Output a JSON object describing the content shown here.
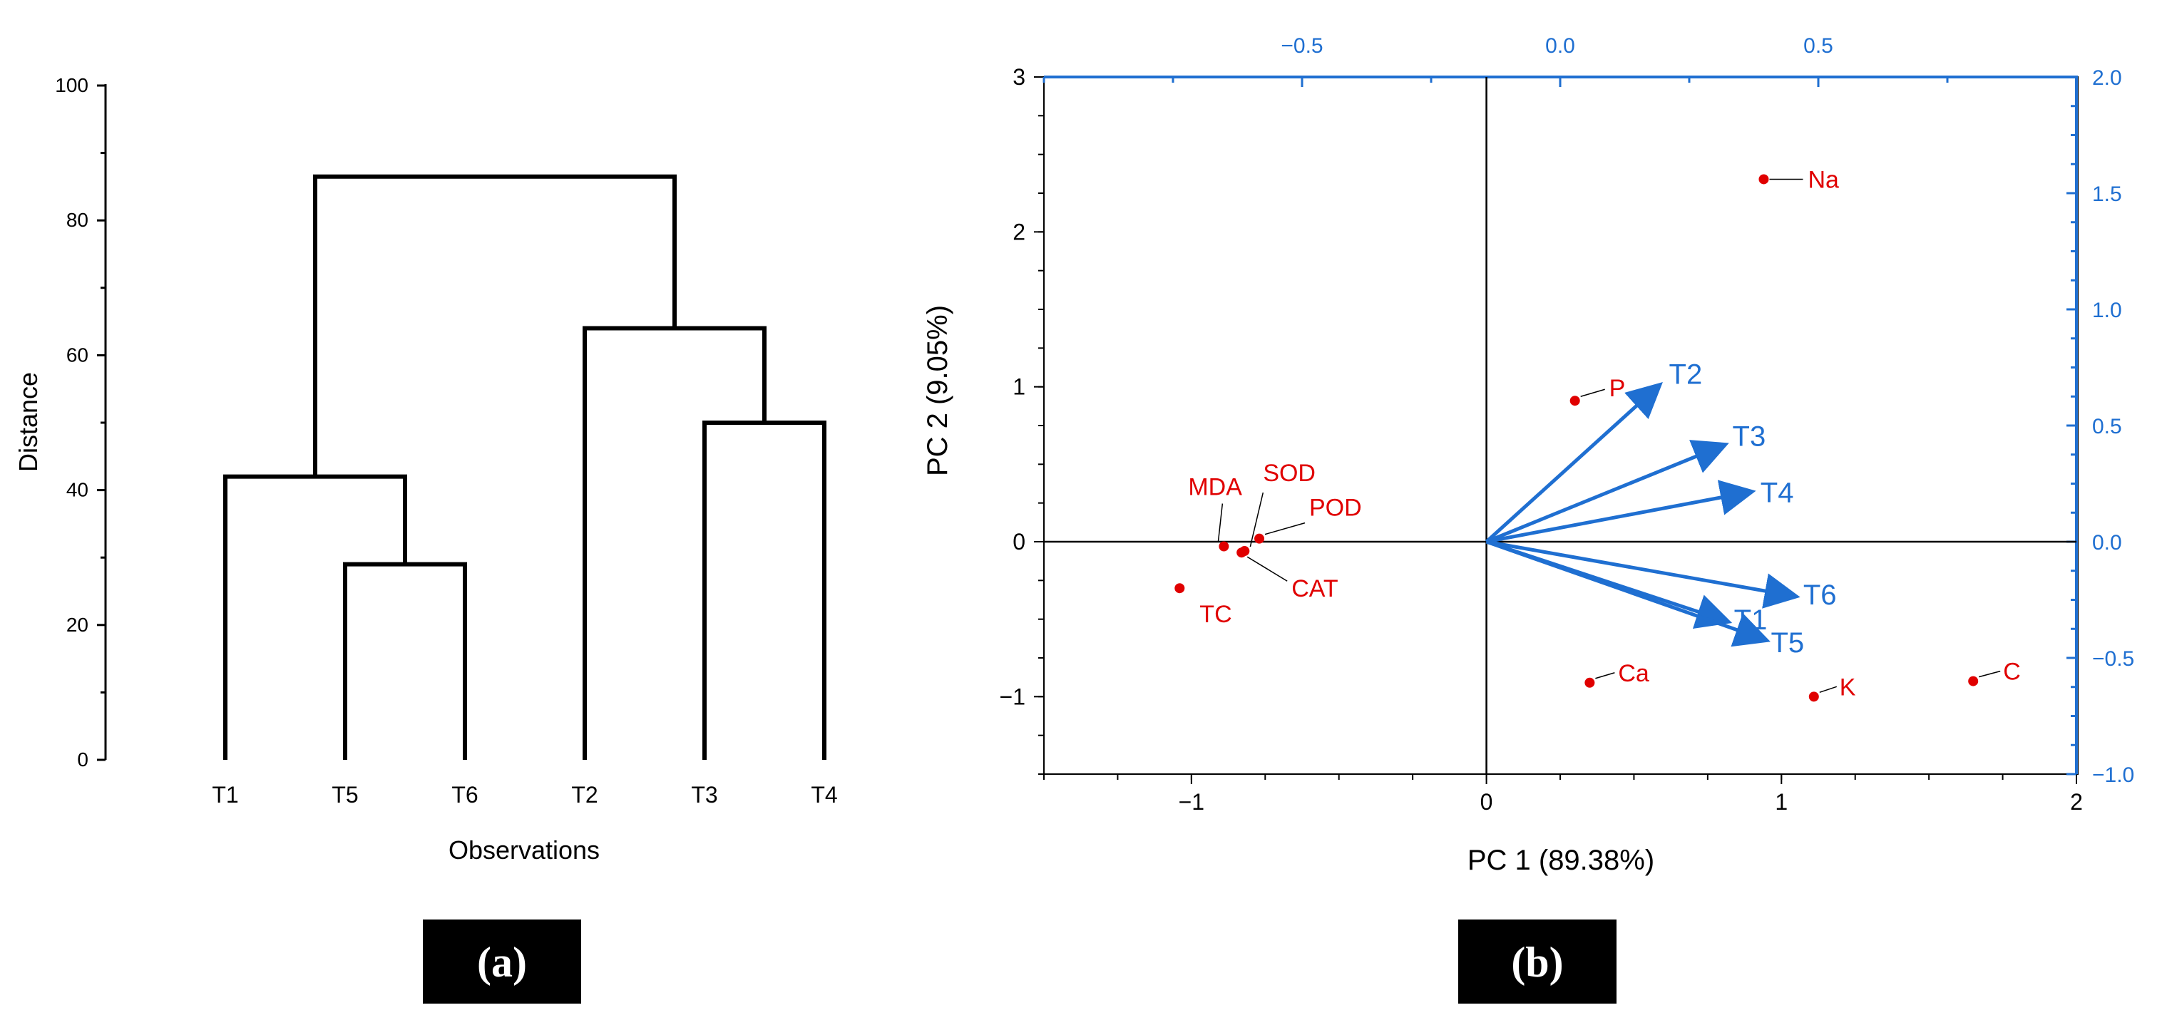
{
  "panels": {
    "a_label": "(a)",
    "b_label": "(b)"
  },
  "colors": {
    "axis": "#000000",
    "vector": "#1f6fd1",
    "point": "#e00000",
    "panel_box": "#000000"
  },
  "chart_data": [
    {
      "type": "dendrogram",
      "title": "",
      "xlabel": "Observations",
      "ylabel": "Distance",
      "ylim": [
        0,
        100
      ],
      "yticks": [
        0,
        20,
        40,
        60,
        80,
        100
      ],
      "tick_labels": [
        "0",
        "20",
        "40",
        "60",
        "80",
        "100"
      ],
      "leaves": [
        "T1",
        "T5",
        "T6",
        "T2",
        "T3",
        "T4"
      ],
      "merges": [
        {
          "left": "T5",
          "right": "T6",
          "height": 29,
          "id": "c1"
        },
        {
          "left": "T1",
          "right": "c1",
          "height": 42,
          "id": "c2"
        },
        {
          "left": "T3",
          "right": "T4",
          "height": 50,
          "id": "c3"
        },
        {
          "left": "T2",
          "right": "c3",
          "height": 64,
          "id": "c4"
        },
        {
          "left": "c2",
          "right": "c4",
          "height": 86.5,
          "id": "c5"
        }
      ]
    },
    {
      "type": "biplot",
      "xlabel": "PC 1 (89.38%)",
      "ylabel": "PC 2 (9.05%)",
      "xlim": [
        -1.5,
        2
      ],
      "ylim": [
        -1.5,
        3
      ],
      "xticks": [
        -1,
        0,
        1,
        2
      ],
      "xtick_labels": [
        "−1",
        "0",
        "1",
        "2"
      ],
      "yticks": [
        -1,
        0,
        1,
        2,
        3
      ],
      "ytick_labels": [
        "−1",
        "0",
        "1",
        "2",
        "3"
      ],
      "top_axis": {
        "lim": [
          -1.0,
          1.0
        ],
        "ticks": [
          -0.5,
          0.0,
          0.5
        ],
        "tick_labels": [
          "−0.5",
          "0.0",
          "0.5"
        ]
      },
      "right_axis": {
        "lim": [
          -1.0,
          2.0
        ],
        "ticks": [
          -1.0,
          -0.5,
          0.0,
          0.5,
          1.0,
          1.5,
          2.0
        ],
        "tick_labels": [
          "−1.0",
          "−0.5",
          "0.0",
          "0.5",
          "1.0",
          "1.5",
          "2.0"
        ]
      },
      "variables": [
        {
          "name": "Na",
          "x": 0.94,
          "y": 2.34
        },
        {
          "name": "P",
          "x": 0.3,
          "y": 0.91
        },
        {
          "name": "SOD",
          "x": -0.82,
          "y": -0.06
        },
        {
          "name": "MDA",
          "x": -0.89,
          "y": -0.03
        },
        {
          "name": "POD",
          "x": -0.77,
          "y": 0.02
        },
        {
          "name": "CAT",
          "x": -0.83,
          "y": -0.07
        },
        {
          "name": "TC",
          "x": -1.04,
          "y": -0.3
        },
        {
          "name": "Ca",
          "x": 0.35,
          "y": -0.91
        },
        {
          "name": "K",
          "x": 1.11,
          "y": -1.0
        },
        {
          "name": "C",
          "x": 1.65,
          "y": -0.9
        }
      ],
      "observations": [
        {
          "name": "T2",
          "x": 0.58,
          "y": 1.0
        },
        {
          "name": "T3",
          "x": 0.8,
          "y": 0.62
        },
        {
          "name": "T4",
          "x": 0.89,
          "y": 0.32
        },
        {
          "name": "T6",
          "x": 1.04,
          "y": -0.35
        },
        {
          "name": "T1",
          "x": 0.81,
          "y": -0.51
        },
        {
          "name": "T5",
          "x": 0.94,
          "y": -0.63
        }
      ]
    }
  ]
}
